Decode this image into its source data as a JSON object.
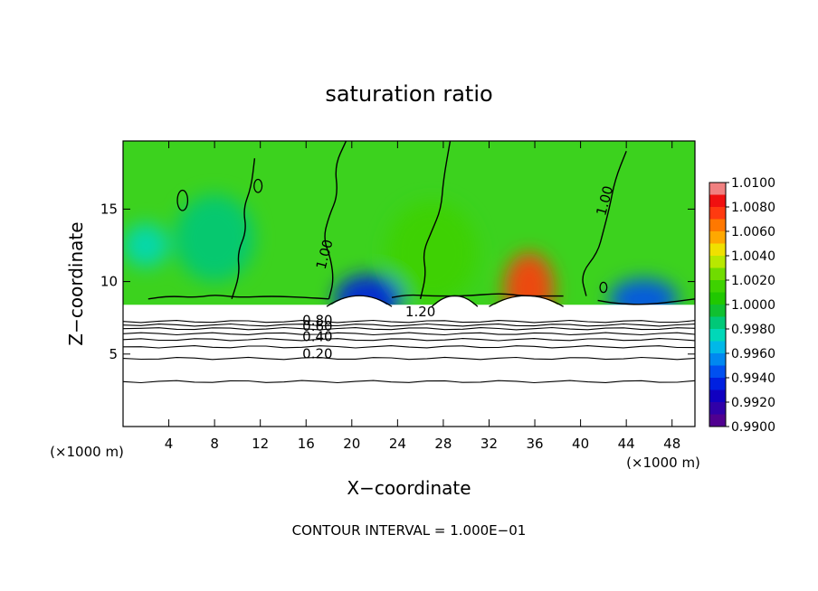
{
  "chart_data": {
    "type": "heatmap",
    "title": "saturation ratio",
    "xlabel": "X−coordinate",
    "ylabel": "Z−coordinate",
    "x_unit_left": "(×1000 m)",
    "x_unit_right": "(×1000 m)",
    "footer": "CONTOUR INTERVAL = 1.000E−01",
    "xlim": [
      0,
      50
    ],
    "ylim": [
      0,
      19.7
    ],
    "x_ticks": [
      4,
      8,
      12,
      16,
      20,
      24,
      28,
      32,
      36,
      40,
      44,
      48
    ],
    "y_ticks": [
      5,
      10,
      15
    ],
    "colorbar": {
      "range": [
        0.99,
        1.01
      ],
      "tick_labels": [
        "1.0100",
        "1.0080",
        "1.0060",
        "1.0040",
        "1.0020",
        "1.0000",
        "0.9980",
        "0.9960",
        "0.9940",
        "0.9920",
        "0.9900"
      ],
      "bands": [
        {
          "from": 1.009,
          "to": 1.01,
          "color": "#f08080"
        },
        {
          "from": 1.008,
          "to": 1.009,
          "color": "#f01010"
        },
        {
          "from": 1.007,
          "to": 1.008,
          "color": "#ff3a10"
        },
        {
          "from": 1.006,
          "to": 1.007,
          "color": "#ff7800"
        },
        {
          "from": 1.005,
          "to": 1.006,
          "color": "#ffa800"
        },
        {
          "from": 1.004,
          "to": 1.005,
          "color": "#f0e000"
        },
        {
          "from": 1.003,
          "to": 1.004,
          "color": "#b8e800"
        },
        {
          "from": 1.002,
          "to": 1.003,
          "color": "#70dc00"
        },
        {
          "from": 1.001,
          "to": 1.002,
          "color": "#3ed200"
        },
        {
          "from": 1.0,
          "to": 1.001,
          "color": "#20c800"
        },
        {
          "from": 0.999,
          "to": 1.0,
          "color": "#10c030"
        },
        {
          "from": 0.998,
          "to": 0.999,
          "color": "#00c878"
        },
        {
          "from": 0.997,
          "to": 0.998,
          "color": "#00d8b8"
        },
        {
          "from": 0.996,
          "to": 0.997,
          "color": "#00b8e8"
        },
        {
          "from": 0.995,
          "to": 0.996,
          "color": "#0088f0"
        },
        {
          "from": 0.994,
          "to": 0.995,
          "color": "#0050f0"
        },
        {
          "from": 0.993,
          "to": 0.994,
          "color": "#0020e0"
        },
        {
          "from": 0.992,
          "to": 0.993,
          "color": "#1000c0"
        },
        {
          "from": 0.991,
          "to": 0.992,
          "color": "#3000a8"
        },
        {
          "from": 0.99,
          "to": 0.991,
          "color": "#500090"
        }
      ]
    },
    "background_color": "#3cd21e",
    "cloud_base_z": 8.4,
    "color_features": [
      {
        "x": 21.5,
        "z": 8.9,
        "rx": 3.0,
        "rz": 1.6,
        "value": 0.9935
      },
      {
        "x": 35.5,
        "z": 9.5,
        "rx": 2.2,
        "rz": 2.5,
        "value": 1.0075
      },
      {
        "x": 45.5,
        "z": 8.8,
        "rx": 3.0,
        "rz": 1.4,
        "value": 0.9945
      },
      {
        "x": 27.0,
        "z": 12.0,
        "rx": 4.0,
        "rz": 3.5,
        "value": 1.0015
      },
      {
        "x": 8.0,
        "z": 13.0,
        "rx": 3.5,
        "rz": 3.0,
        "value": 0.9985
      },
      {
        "x": 2.0,
        "z": 12.5,
        "rx": 2.0,
        "rz": 1.5,
        "value": 0.9975
      }
    ],
    "contour_labels": [
      {
        "text": "1.00",
        "x": 18.0,
        "z": 11.8
      },
      {
        "text": "1.00",
        "x": 42.5,
        "z": 15.5
      },
      {
        "text": "1.20",
        "x": 26.0,
        "z": 7.6
      },
      {
        "text": "0.80",
        "x": 17.0,
        "z": 7.0
      },
      {
        "text": "0.60",
        "x": 17.0,
        "z": 6.6
      },
      {
        "text": "0.40",
        "x": 17.0,
        "z": 5.9
      },
      {
        "text": "0.20",
        "x": 17.0,
        "z": 4.7
      }
    ],
    "stable_contours": [
      {
        "level": 0.8,
        "z": 7.25
      },
      {
        "level": 0.7,
        "z": 7.0
      },
      {
        "level": 0.6,
        "z": 6.75
      },
      {
        "level": 0.5,
        "z": 6.4
      },
      {
        "level": 0.4,
        "z": 6.0
      },
      {
        "level": 0.3,
        "z": 5.5
      },
      {
        "level": 0.2,
        "z": 4.7
      },
      {
        "level": 0.1,
        "z": 3.1
      }
    ],
    "cloud_domes": [
      {
        "x0": 17.8,
        "x1": 23.5
      },
      {
        "x0": 27.0,
        "x1": 31.0
      },
      {
        "x0": 32.0,
        "x1": 38.5
      }
    ],
    "unit_level_contours": [
      [
        [
          18.0,
          8.8
        ],
        [
          18.4,
          10.0
        ],
        [
          18.2,
          11.5
        ],
        [
          17.5,
          13.0
        ],
        [
          18.0,
          14.5
        ],
        [
          18.8,
          16.0
        ],
        [
          18.5,
          18.0
        ],
        [
          19.5,
          19.7
        ]
      ],
      [
        [
          26.0,
          8.8
        ],
        [
          26.5,
          10.5
        ],
        [
          26.2,
          12.0
        ],
        [
          27.0,
          13.5
        ],
        [
          27.8,
          15.0
        ],
        [
          28.0,
          17.0
        ],
        [
          28.6,
          19.7
        ]
      ],
      [
        [
          40.5,
          9.0
        ],
        [
          40.0,
          10.5
        ],
        [
          41.5,
          12.0
        ],
        [
          42.0,
          13.5
        ],
        [
          42.5,
          15.0
        ],
        [
          43.0,
          17.0
        ],
        [
          44.0,
          19.0
        ]
      ],
      [
        [
          9.5,
          8.8
        ],
        [
          10.2,
          10.5
        ],
        [
          10.0,
          12.0
        ],
        [
          10.8,
          13.5
        ],
        [
          10.5,
          15.0
        ],
        [
          11.2,
          16.5
        ],
        [
          11.5,
          18.5
        ]
      ],
      [
        [
          2.2,
          8.8
        ],
        [
          4.0,
          9.0
        ],
        [
          6.5,
          8.9
        ],
        [
          8.0,
          9.1
        ],
        [
          10.0,
          8.9
        ],
        [
          13.0,
          9.0
        ],
        [
          16.0,
          8.9
        ],
        [
          18.0,
          8.8
        ]
      ],
      [
        [
          23.5,
          8.9
        ],
        [
          25.0,
          9.1
        ],
        [
          27.0,
          9.0
        ],
        [
          30.0,
          9.0
        ],
        [
          33.0,
          9.2
        ],
        [
          35.0,
          9.0
        ],
        [
          38.5,
          9.0
        ]
      ],
      [
        [
          41.5,
          8.7
        ],
        [
          43.0,
          8.5
        ],
        [
          45.5,
          8.4
        ],
        [
          48.0,
          8.6
        ],
        [
          50.0,
          8.8
        ]
      ]
    ],
    "closed_contours": [
      {
        "x": 5.2,
        "z": 15.6,
        "rx": 0.45,
        "rz": 0.7
      },
      {
        "x": 11.8,
        "z": 16.6,
        "rx": 0.35,
        "rz": 0.45
      },
      {
        "x": 42.0,
        "z": 9.6,
        "rx": 0.3,
        "rz": 0.35
      }
    ]
  }
}
